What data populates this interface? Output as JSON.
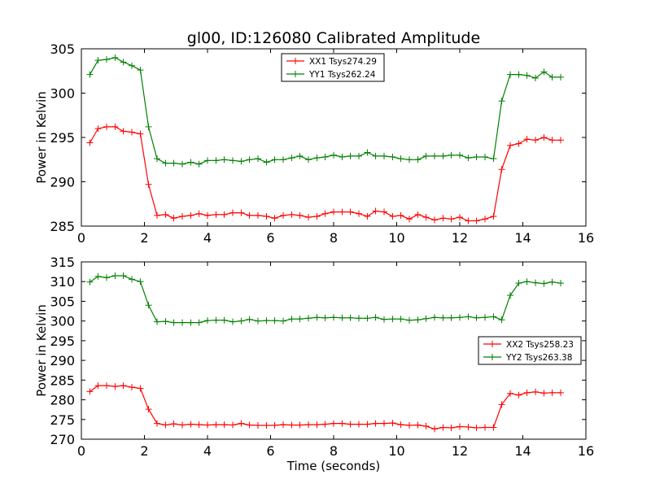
{
  "figure_title": "gl00, ID:126080 Calibrated Amplitude",
  "colors": {
    "red": "#ff0000",
    "green": "#008000",
    "axis": "#000000"
  },
  "chart_data": [
    {
      "type": "line",
      "title": "gl00, ID:126080 Calibrated Amplitude",
      "xlabel": "",
      "ylabel": "Power in Kelvin",
      "xlim": [
        0,
        16
      ],
      "ylim": [
        285,
        305
      ],
      "xticks": [
        0,
        2,
        4,
        6,
        8,
        10,
        12,
        14,
        16
      ],
      "yticks": [
        285,
        290,
        295,
        300,
        305
      ],
      "grid": false,
      "legend_position": "top-center",
      "x": [
        0.27,
        0.53,
        0.8,
        1.07,
        1.33,
        1.6,
        1.87,
        2.13,
        2.4,
        2.67,
        2.93,
        3.2,
        3.47,
        3.73,
        4.0,
        4.27,
        4.53,
        4.8,
        5.07,
        5.33,
        5.6,
        5.87,
        6.13,
        6.4,
        6.67,
        6.93,
        7.2,
        7.47,
        7.73,
        8.0,
        8.27,
        8.53,
        8.8,
        9.07,
        9.33,
        9.6,
        9.87,
        10.13,
        10.4,
        10.67,
        10.93,
        11.2,
        11.47,
        11.73,
        12.0,
        12.27,
        12.53,
        12.8,
        13.07,
        13.33,
        13.6,
        13.87,
        14.13,
        14.4,
        14.67,
        14.93,
        15.2
      ],
      "series": [
        {
          "name": "XX1 Tsys274.29",
          "color": "#ff0000",
          "values": [
            294.4,
            296.0,
            296.2,
            296.2,
            295.7,
            295.6,
            295.4,
            289.7,
            286.2,
            286.3,
            285.9,
            286.1,
            286.2,
            286.4,
            286.2,
            286.3,
            286.3,
            286.5,
            286.5,
            286.2,
            286.2,
            286.1,
            285.9,
            286.2,
            286.3,
            286.2,
            286.0,
            286.1,
            286.4,
            286.6,
            286.6,
            286.6,
            286.4,
            286.1,
            286.7,
            286.6,
            286.1,
            286.2,
            285.8,
            286.3,
            286.0,
            285.7,
            285.9,
            285.8,
            286.0,
            285.6,
            285.6,
            285.8,
            286.1,
            291.4,
            294.1,
            294.3,
            294.8,
            294.7,
            295.0,
            294.7,
            294.7
          ]
        },
        {
          "name": "YY1 Tsys262.24",
          "color": "#008000",
          "values": [
            302.1,
            303.7,
            303.8,
            304.0,
            303.5,
            303.1,
            302.6,
            296.2,
            292.6,
            292.1,
            292.1,
            292.0,
            292.2,
            292.0,
            292.4,
            292.4,
            292.5,
            292.4,
            292.3,
            292.5,
            292.6,
            292.2,
            292.5,
            292.5,
            292.7,
            292.9,
            292.5,
            292.7,
            292.8,
            293.0,
            292.8,
            292.9,
            292.9,
            293.3,
            292.9,
            292.9,
            292.8,
            292.6,
            292.5,
            292.5,
            292.9,
            292.9,
            292.9,
            293.0,
            293.0,
            292.7,
            292.8,
            292.8,
            292.6,
            299.1,
            302.1,
            302.1,
            302.0,
            301.7,
            302.4,
            301.8,
            301.8
          ]
        }
      ]
    },
    {
      "type": "line",
      "title": "",
      "xlabel": "Time (seconds)",
      "ylabel": "Power in Kelvin",
      "xlim": [
        0,
        16
      ],
      "ylim": [
        270,
        315
      ],
      "xticks": [
        0,
        2,
        4,
        6,
        8,
        10,
        12,
        14,
        16
      ],
      "yticks": [
        270,
        275,
        280,
        285,
        290,
        295,
        300,
        305,
        310,
        315
      ],
      "grid": false,
      "legend_position": "right",
      "x": [
        0.27,
        0.53,
        0.8,
        1.07,
        1.33,
        1.6,
        1.87,
        2.13,
        2.4,
        2.67,
        2.93,
        3.2,
        3.47,
        3.73,
        4.0,
        4.27,
        4.53,
        4.8,
        5.07,
        5.33,
        5.6,
        5.87,
        6.13,
        6.4,
        6.67,
        6.93,
        7.2,
        7.47,
        7.73,
        8.0,
        8.27,
        8.53,
        8.8,
        9.07,
        9.33,
        9.6,
        9.87,
        10.13,
        10.4,
        10.67,
        10.93,
        11.2,
        11.47,
        11.73,
        12.0,
        12.27,
        12.53,
        12.8,
        13.07,
        13.33,
        13.6,
        13.87,
        14.13,
        14.4,
        14.67,
        14.93,
        15.2
      ],
      "series": [
        {
          "name": "XX2 Tsys258.23",
          "color": "#ff0000",
          "values": [
            282.1,
            283.6,
            283.6,
            283.4,
            283.6,
            283.2,
            282.9,
            277.6,
            274.0,
            273.6,
            273.9,
            273.6,
            273.8,
            273.7,
            273.6,
            273.7,
            273.7,
            273.6,
            274.0,
            273.6,
            273.5,
            273.5,
            273.5,
            273.7,
            273.6,
            273.6,
            273.7,
            273.7,
            273.8,
            274.0,
            274.0,
            273.8,
            273.8,
            273.8,
            274.0,
            274.0,
            274.1,
            273.7,
            273.5,
            273.6,
            273.3,
            272.6,
            273.0,
            272.9,
            273.2,
            273.1,
            272.9,
            273.0,
            273.0,
            278.8,
            281.6,
            281.2,
            281.8,
            282.0,
            281.7,
            281.8,
            281.8
          ]
        },
        {
          "name": "YY2 Tsys263.38",
          "color": "#008000",
          "values": [
            309.9,
            311.3,
            311.0,
            311.5,
            311.5,
            310.6,
            310.0,
            304.0,
            299.8,
            299.9,
            299.6,
            299.6,
            299.6,
            299.6,
            300.1,
            300.2,
            300.2,
            299.8,
            300.0,
            300.4,
            300.0,
            300.1,
            300.1,
            300.0,
            300.5,
            300.5,
            300.7,
            300.9,
            300.8,
            300.9,
            300.8,
            300.8,
            300.7,
            300.7,
            300.9,
            300.4,
            300.5,
            300.5,
            300.2,
            300.3,
            300.6,
            300.9,
            300.8,
            300.8,
            300.9,
            301.1,
            300.8,
            300.9,
            301.1,
            300.3,
            306.5,
            309.6,
            310.0,
            309.7,
            309.5,
            309.9,
            309.6
          ]
        }
      ]
    }
  ]
}
